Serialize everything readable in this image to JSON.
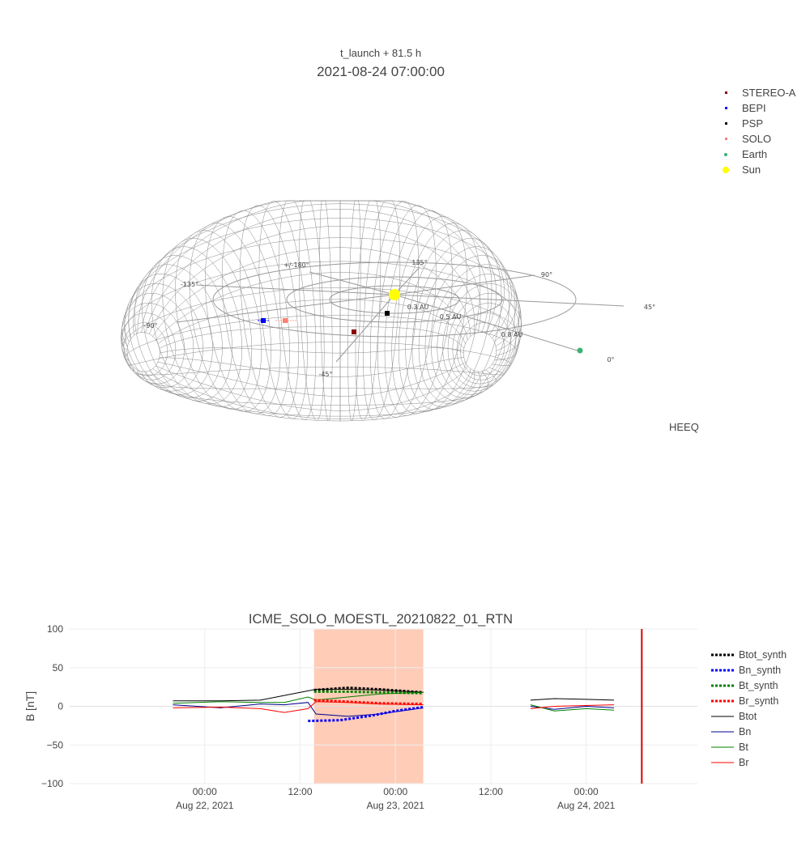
{
  "view3d": {
    "subtitle": "t_launch + 81.5 h",
    "timestamp": "2021-08-24 07:00:00",
    "frame_label": "HEEQ",
    "legend": [
      {
        "name": "STEREO-A",
        "color": "#8b0000",
        "symbol": "square"
      },
      {
        "name": "BEPI",
        "color": "#0000ff",
        "symbol": "square"
      },
      {
        "name": "PSP",
        "color": "#000000",
        "symbol": "square"
      },
      {
        "name": "SOLO",
        "color": "#fa8072",
        "symbol": "square"
      },
      {
        "name": "Earth",
        "color": "#3cb371",
        "symbol": "circle"
      },
      {
        "name": "Sun",
        "color": "#ffff00",
        "symbol": "circle"
      }
    ],
    "rings": [
      "0.3 AU",
      "0.5 AU",
      "0.8 AU"
    ],
    "longitudes": [
      {
        "label": "0°"
      },
      {
        "label": "45°"
      },
      {
        "label": "90°"
      },
      {
        "label": "135°"
      },
      {
        "label": "+/-180°"
      },
      {
        "label": "-135°"
      },
      {
        "label": "-90°"
      },
      {
        "label": "-45°"
      }
    ]
  },
  "chart_data": {
    "type": "line",
    "title": "ICME_SOLO_MOESTL_20210822_01_RTN",
    "ylabel": "B [nT]",
    "ylim": [
      -100,
      100
    ],
    "yticks": [
      100,
      50,
      0,
      -50,
      -100
    ],
    "xticks": [
      {
        "time": "2021-08-22 00:00",
        "line1": "00:00",
        "line2": "Aug 22, 2021"
      },
      {
        "time": "2021-08-22 12:00",
        "line1": "12:00",
        "line2": ""
      },
      {
        "time": "2021-08-23 00:00",
        "line1": "00:00",
        "line2": "Aug 23, 2021"
      },
      {
        "time": "2021-08-23 12:00",
        "line1": "12:00",
        "line2": ""
      },
      {
        "time": "2021-08-24 00:00",
        "line1": "00:00",
        "line2": "Aug 24, 2021"
      }
    ],
    "xrange": [
      "2021-08-21 07:00",
      "2021-08-24 14:00"
    ],
    "shaded_interval": {
      "start": "2021-08-22 13:45",
      "end": "2021-08-23 03:30",
      "color": "#ffccb8"
    },
    "current_time_marker": {
      "time": "2021-08-24 07:00",
      "color": "#dd0000"
    },
    "grid": true,
    "legend_position": "right",
    "series": [
      {
        "name": "Btot_synth",
        "color": "#000000",
        "dash": "dot",
        "points": [
          [
            "2021-08-22 13:45",
            21
          ],
          [
            "2021-08-22 18:00",
            24
          ],
          [
            "2021-08-22 22:00",
            22
          ],
          [
            "2021-08-23 03:30",
            18
          ]
        ]
      },
      {
        "name": "Bn_synth",
        "color": "#0000ff",
        "dash": "dot",
        "points": [
          [
            "2021-08-22 13:00",
            -19
          ],
          [
            "2021-08-22 17:00",
            -18
          ],
          [
            "2021-08-22 21:00",
            -12
          ],
          [
            "2021-08-23 00:00",
            -6
          ],
          [
            "2021-08-23 03:30",
            -1
          ]
        ]
      },
      {
        "name": "Bt_synth",
        "color": "#008000",
        "dash": "dot",
        "points": [
          [
            "2021-08-22 13:45",
            19
          ],
          [
            "2021-08-22 18:00",
            19
          ],
          [
            "2021-08-22 22:00",
            18
          ],
          [
            "2021-08-23 03:30",
            17
          ]
        ]
      },
      {
        "name": "Br_synth",
        "color": "#ff0000",
        "dash": "dot",
        "points": [
          [
            "2021-08-22 13:45",
            8
          ],
          [
            "2021-08-22 18:00",
            6
          ],
          [
            "2021-08-22 22:00",
            4
          ],
          [
            "2021-08-23 03:30",
            3
          ]
        ]
      },
      {
        "name": "Btot",
        "color": "#000000",
        "dash": "solid",
        "points": [
          [
            "2021-08-21 20:00",
            7
          ],
          [
            "2021-08-22 02:00",
            7
          ],
          [
            "2021-08-22 07:00",
            8
          ],
          [
            "2021-08-22 10:00",
            14
          ],
          [
            "2021-08-22 13:00",
            20
          ],
          [
            "2021-08-22 14:00",
            22
          ],
          [
            "2021-08-22 18:00",
            22
          ],
          [
            "2021-08-22 22:00",
            21
          ],
          [
            "2021-08-23 03:30",
            18
          ],
          [
            "GAP",
            0
          ],
          [
            "2021-08-23 17:00",
            8
          ],
          [
            "2021-08-23 20:00",
            10
          ],
          [
            "2021-08-24 00:00",
            9
          ],
          [
            "2021-08-24 03:30",
            8
          ]
        ]
      },
      {
        "name": "Bn",
        "color": "#00008b",
        "dash": "solid",
        "points": [
          [
            "2021-08-21 20:00",
            2
          ],
          [
            "2021-08-22 02:00",
            -2
          ],
          [
            "2021-08-22 07:00",
            3
          ],
          [
            "2021-08-22 10:00",
            2
          ],
          [
            "2021-08-22 13:00",
            5
          ],
          [
            "2021-08-22 14:00",
            -10
          ],
          [
            "2021-08-22 18:00",
            -13
          ],
          [
            "2021-08-22 22:00",
            -10
          ],
          [
            "2021-08-23 03:30",
            -2
          ],
          [
            "GAP",
            0
          ],
          [
            "2021-08-23 17:00",
            0
          ],
          [
            "2021-08-23 20:00",
            -4
          ],
          [
            "2021-08-24 00:00",
            0
          ],
          [
            "2021-08-24 03:30",
            -2
          ]
        ]
      },
      {
        "name": "Bt",
        "color": "#008000",
        "dash": "solid",
        "points": [
          [
            "2021-08-21 20:00",
            4
          ],
          [
            "2021-08-22 02:00",
            6
          ],
          [
            "2021-08-22 07:00",
            5
          ],
          [
            "2021-08-22 10:00",
            5
          ],
          [
            "2021-08-22 13:00",
            12
          ],
          [
            "2021-08-22 14:00",
            8
          ],
          [
            "2021-08-22 18:00",
            12
          ],
          [
            "2021-08-22 22:00",
            16
          ],
          [
            "2021-08-23 03:30",
            18
          ],
          [
            "GAP",
            0
          ],
          [
            "2021-08-23 17:00",
            2
          ],
          [
            "2021-08-23 20:00",
            -6
          ],
          [
            "2021-08-24 00:00",
            -3
          ],
          [
            "2021-08-24 03:30",
            -5
          ]
        ]
      },
      {
        "name": "Br",
        "color": "#ff0000",
        "dash": "solid",
        "points": [
          [
            "2021-08-21 20:00",
            -2
          ],
          [
            "2021-08-22 02:00",
            -1
          ],
          [
            "2021-08-22 07:00",
            -3
          ],
          [
            "2021-08-22 10:00",
            -8
          ],
          [
            "2021-08-22 13:00",
            -3
          ],
          [
            "2021-08-22 14:00",
            6
          ],
          [
            "2021-08-22 18:00",
            5
          ],
          [
            "2021-08-22 22:00",
            3
          ],
          [
            "2021-08-23 03:30",
            2
          ],
          [
            "GAP",
            0
          ],
          [
            "2021-08-23 17:00",
            -3
          ],
          [
            "2021-08-23 20:00",
            0
          ],
          [
            "2021-08-24 00:00",
            1
          ],
          [
            "2021-08-24 03:30",
            2
          ]
        ]
      }
    ]
  }
}
